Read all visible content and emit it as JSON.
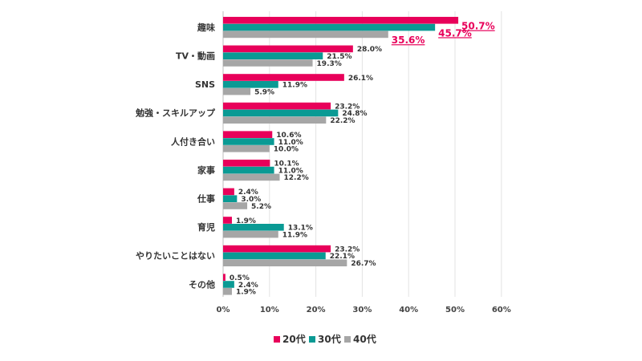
{
  "chart_data": {
    "type": "bar",
    "orientation": "horizontal",
    "categories": [
      "趣味",
      "TV・動画",
      "SNS",
      "勉強・スキルアップ",
      "人付き合い",
      "家事",
      "仕事",
      "育児",
      "やりたいことはない",
      "その他"
    ],
    "series": [
      {
        "name": "20代",
        "color": "#e8005a",
        "values": [
          50.7,
          28.0,
          26.1,
          23.2,
          10.6,
          10.1,
          2.4,
          1.9,
          23.2,
          0.5
        ]
      },
      {
        "name": "30代",
        "color": "#0a9a94",
        "values": [
          45.7,
          21.5,
          11.9,
          24.8,
          11.0,
          11.0,
          3.0,
          13.1,
          22.1,
          2.4
        ]
      },
      {
        "name": "40代",
        "color": "#a6a6a6",
        "values": [
          35.6,
          19.3,
          5.9,
          22.2,
          10.0,
          12.2,
          5.2,
          11.9,
          26.7,
          1.9
        ]
      }
    ],
    "x_ticks": [
      "0%",
      "10%",
      "20%",
      "30%",
      "40%",
      "50%",
      "60%"
    ],
    "xlim": [
      0,
      60
    ],
    "value_suffix": "%",
    "highlight_category": "趣味",
    "highlight_color": "#e8005a",
    "grid": true,
    "legend_position": "bottom"
  }
}
